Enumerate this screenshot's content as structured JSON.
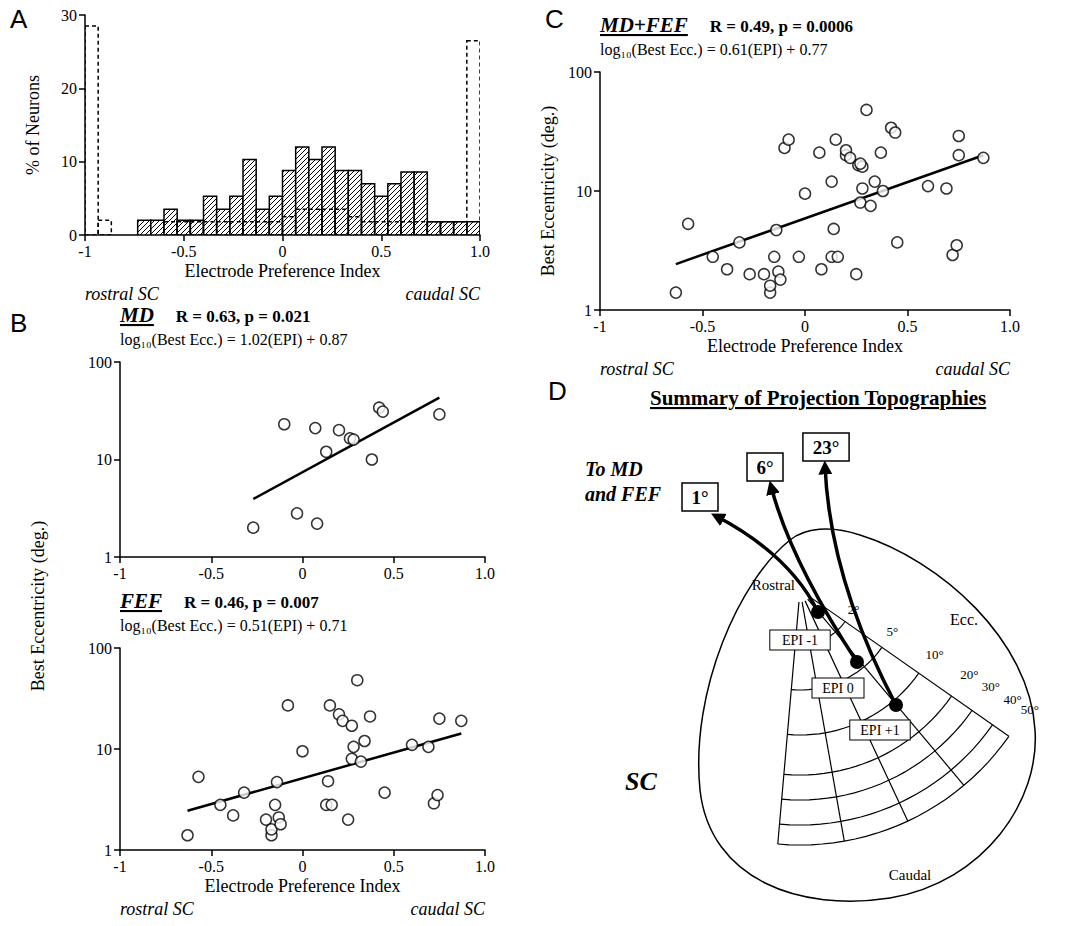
{
  "chart_data": [
    {
      "panel": "A",
      "type": "histogram",
      "bins": [
        -1,
        -0.9333,
        -0.8667,
        -0.8,
        -0.7333,
        -0.6667,
        -0.6,
        -0.5333,
        -0.4667,
        -0.4,
        -0.3333,
        -0.2667,
        -0.2,
        -0.1333,
        -0.0667,
        0,
        0.0667,
        0.1333,
        0.2,
        0.2667,
        0.3333,
        0.4,
        0.4667,
        0.5333,
        0.6,
        0.6667,
        0.7333,
        0.8,
        0.8667,
        0.9333,
        1
      ],
      "series": [
        {
          "type": "hatched",
          "color": "#000000",
          "line_style": "solid",
          "values": [
            0,
            0,
            0,
            0,
            2,
            2,
            3.5,
            2,
            2,
            5.3,
            3.5,
            5.3,
            10.3,
            3.5,
            5.3,
            8.8,
            12,
            10.3,
            12,
            8.8,
            8.8,
            7,
            5.3,
            7,
            8.6,
            8.6,
            1.8,
            1.8,
            1.8,
            1.8
          ]
        },
        {
          "type": "outline",
          "color": "#000000",
          "line_style": "dashed",
          "values": [
            28.5,
            2,
            0,
            0,
            0,
            0,
            1.8,
            1.8,
            1.8,
            1.8,
            1.8,
            1.8,
            1.8,
            1.8,
            1.8,
            2.5,
            3.5,
            3.5,
            3.5,
            3.5,
            2.5,
            1.8,
            1.8,
            1.8,
            1.8,
            1.8,
            1.8,
            1.8,
            1.8,
            26.5
          ]
        }
      ],
      "x_label": "Electrode Preference Index",
      "x_end_labels": [
        "rostral SC",
        "caudal SC"
      ],
      "y_label": "% of Neurons",
      "xlim": [
        -1,
        1
      ],
      "xticks": [
        -1,
        -0.5,
        0,
        0.5,
        {
          "value": 1,
          "label": "1.0"
        }
      ],
      "ylim": [
        0,
        30
      ],
      "yticks": [
        0,
        10,
        20,
        30
      ],
      "grid": false
    },
    {
      "panel": "B",
      "type": "scatter",
      "title": "MD",
      "subtitle": "R = 0.63, p = 0.021",
      "equation": "log₁₀(Best Ecc.) = 1.02(EPI) + 0.87",
      "x": [
        -0.27,
        -0.1,
        -0.03,
        0.07,
        0.08,
        0.13,
        0.2,
        0.26,
        0.28,
        0.38,
        0.42,
        0.44,
        0.75
      ],
      "values": [
        2,
        23,
        2.8,
        21,
        2.2,
        12,
        20,
        16.5,
        16,
        10,
        34,
        31,
        29
      ],
      "fit": {
        "slope": 1.02,
        "intercept": 0.87,
        "x": [
          -0.27,
          0.75
        ]
      },
      "marker": "circle",
      "color": "#000000",
      "log": "y",
      "xlim": [
        -1,
        1
      ],
      "xticks": [
        -1,
        -0.5,
        0,
        0.5,
        {
          "value": 1,
          "label": "1.0"
        }
      ],
      "ylim": [
        1,
        100
      ],
      "yticks": [
        1,
        10,
        100
      ],
      "grid": false
    },
    {
      "type": "scatter",
      "title": "FEF",
      "subtitle": "R = 0.46, p = 0.007",
      "equation": "log₁₀(Best Ecc.) = 0.51(EPI) + 0.71",
      "x": [
        -0.63,
        -0.57,
        -0.45,
        -0.38,
        -0.32,
        -0.2,
        -0.17,
        -0.17,
        -0.15,
        -0.14,
        -0.13,
        -0.12,
        -0.08,
        0,
        0.13,
        0.14,
        0.15,
        0.16,
        0.2,
        0.22,
        0.25,
        0.27,
        0.27,
        0.28,
        0.3,
        0.32,
        0.34,
        0.37,
        0.45,
        0.6,
        0.69,
        0.72,
        0.74,
        0.75,
        0.87
      ],
      "values": [
        1.4,
        5.3,
        2.8,
        2.2,
        3.7,
        2.0,
        1.4,
        1.6,
        2.8,
        4.7,
        2.1,
        1.8,
        27,
        9.5,
        2.8,
        4.8,
        27,
        2.8,
        22,
        19,
        2.0,
        8,
        17,
        10.5,
        48,
        7.5,
        12,
        21,
        3.7,
        11,
        10.5,
        2.9,
        3.5,
        20,
        19
      ],
      "fit": {
        "slope": 0.51,
        "intercept": 0.71,
        "x": [
          -0.63,
          0.87
        ]
      },
      "marker": "circle",
      "color": "#000000",
      "log": "y",
      "x_label": "Electrode Preference Index",
      "x_end_labels": [
        "rostral SC",
        "caudal SC"
      ],
      "y_label": "Best Eccentricity (deg.)",
      "xlim": [
        -1,
        1
      ],
      "xticks": [
        -1,
        -0.5,
        0,
        0.5,
        {
          "value": 1,
          "label": "1.0"
        }
      ],
      "ylim": [
        1,
        100
      ],
      "yticks": [
        1,
        10,
        100
      ],
      "grid": false
    },
    {
      "panel": "C",
      "type": "scatter",
      "title": "MD+FEF",
      "subtitle": "R = 0.49, p = 0.0006",
      "equation": "log₁₀(Best Ecc.) = 0.61(EPI) + 0.77",
      "x": [
        -0.27,
        -0.1,
        -0.03,
        0.07,
        0.08,
        0.13,
        0.2,
        0.26,
        0.28,
        0.38,
        0.42,
        0.44,
        0.75,
        -0.63,
        -0.57,
        -0.45,
        -0.38,
        -0.32,
        -0.2,
        -0.17,
        -0.17,
        -0.15,
        -0.14,
        -0.13,
        -0.12,
        -0.08,
        0,
        0.13,
        0.14,
        0.15,
        0.16,
        0.2,
        0.22,
        0.25,
        0.27,
        0.27,
        0.28,
        0.3,
        0.32,
        0.34,
        0.37,
        0.45,
        0.6,
        0.69,
        0.72,
        0.74,
        0.75,
        0.87
      ],
      "values": [
        2,
        23,
        2.8,
        21,
        2.2,
        12,
        20,
        16.5,
        16,
        10,
        34,
        31,
        29,
        1.4,
        5.3,
        2.8,
        2.2,
        3.7,
        2.0,
        1.4,
        1.6,
        2.8,
        4.7,
        2.1,
        1.8,
        27,
        9.5,
        2.8,
        4.8,
        27,
        2.8,
        22,
        19,
        2.0,
        8,
        17,
        10.5,
        48,
        7.5,
        12,
        21,
        3.7,
        11,
        10.5,
        2.9,
        3.5,
        20,
        19
      ],
      "fit": {
        "slope": 0.61,
        "intercept": 0.77,
        "x": [
          -0.63,
          0.87
        ]
      },
      "marker": "circle",
      "color": "#000000",
      "log": "y",
      "x_label": "Electrode Preference Index",
      "x_end_labels": [
        "rostral SC",
        "caudal SC"
      ],
      "y_label": "Best Eccentricity (deg.)",
      "xlim": [
        -1,
        1
      ],
      "xticks": [
        -1,
        -0.5,
        0,
        0.5,
        {
          "value": 1,
          "label": "1.0"
        }
      ],
      "ylim": [
        1,
        100
      ],
      "yticks": [
        1,
        10,
        100
      ],
      "grid": false
    }
  ],
  "diagram": {
    "panel": "D",
    "title": "Summary of Projection Topographies",
    "source_label": "To MD and FEF",
    "map_label": "SC",
    "rostral_label": "Rostral",
    "caudal_label": "Caudal",
    "ecc_label": "Ecc.",
    "ecc_ticks": [
      "2°",
      "5°",
      "10°",
      "20°",
      "30°",
      "40°",
      "50°"
    ],
    "projections": [
      {
        "epi": "EPI -1",
        "target": "1°"
      },
      {
        "epi": "EPI 0",
        "target": "6°"
      },
      {
        "epi": "EPI +1",
        "target": "23°"
      }
    ]
  }
}
